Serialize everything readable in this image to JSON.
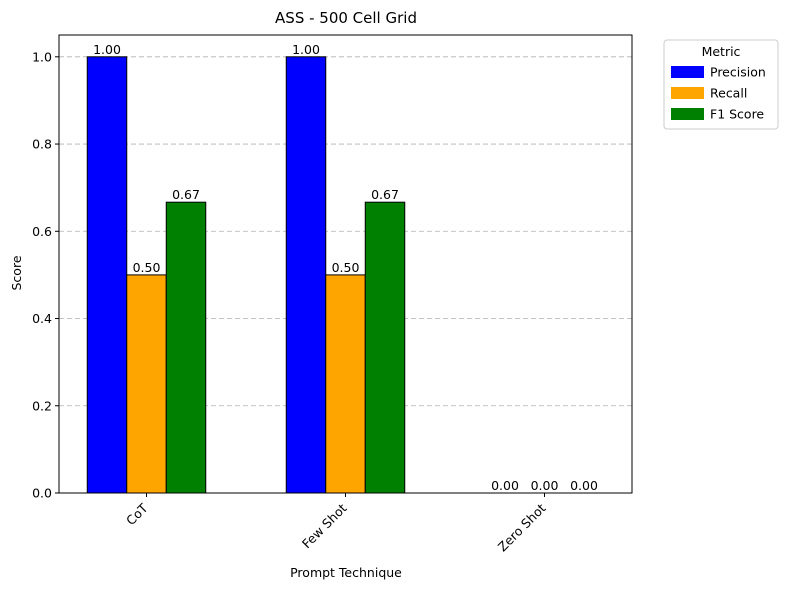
{
  "chart_data": {
    "type": "bar",
    "title": "ASS - 500 Cell Grid",
    "xlabel": "Prompt Technique",
    "ylabel": "Score",
    "categories": [
      "CoT",
      "Few Shot",
      "Zero Shot"
    ],
    "series": [
      {
        "name": "Precision",
        "values": [
          1.0,
          1.0,
          0.0
        ],
        "color": "#0000ff",
        "labels": [
          "1.00",
          "1.00",
          "0.00"
        ]
      },
      {
        "name": "Recall",
        "values": [
          0.5,
          0.5,
          0.0
        ],
        "color": "#ffa500",
        "labels": [
          "0.50",
          "0.50",
          "0.00"
        ]
      },
      {
        "name": "F1 Score",
        "values": [
          0.6667,
          0.6667,
          0.0
        ],
        "color": "#008000",
        "labels": [
          "0.67",
          "0.67",
          "0.00"
        ]
      }
    ],
    "ylim": [
      0,
      1.05
    ],
    "yticks": [
      0.0,
      0.2,
      0.4,
      0.6,
      0.8,
      1.0
    ],
    "ytick_labels": [
      "0.0",
      "0.2",
      "0.4",
      "0.6",
      "0.8",
      "1.0"
    ],
    "grid": "y-dashed",
    "legend": {
      "title": "Metric",
      "placement": "outside-top-right"
    }
  }
}
